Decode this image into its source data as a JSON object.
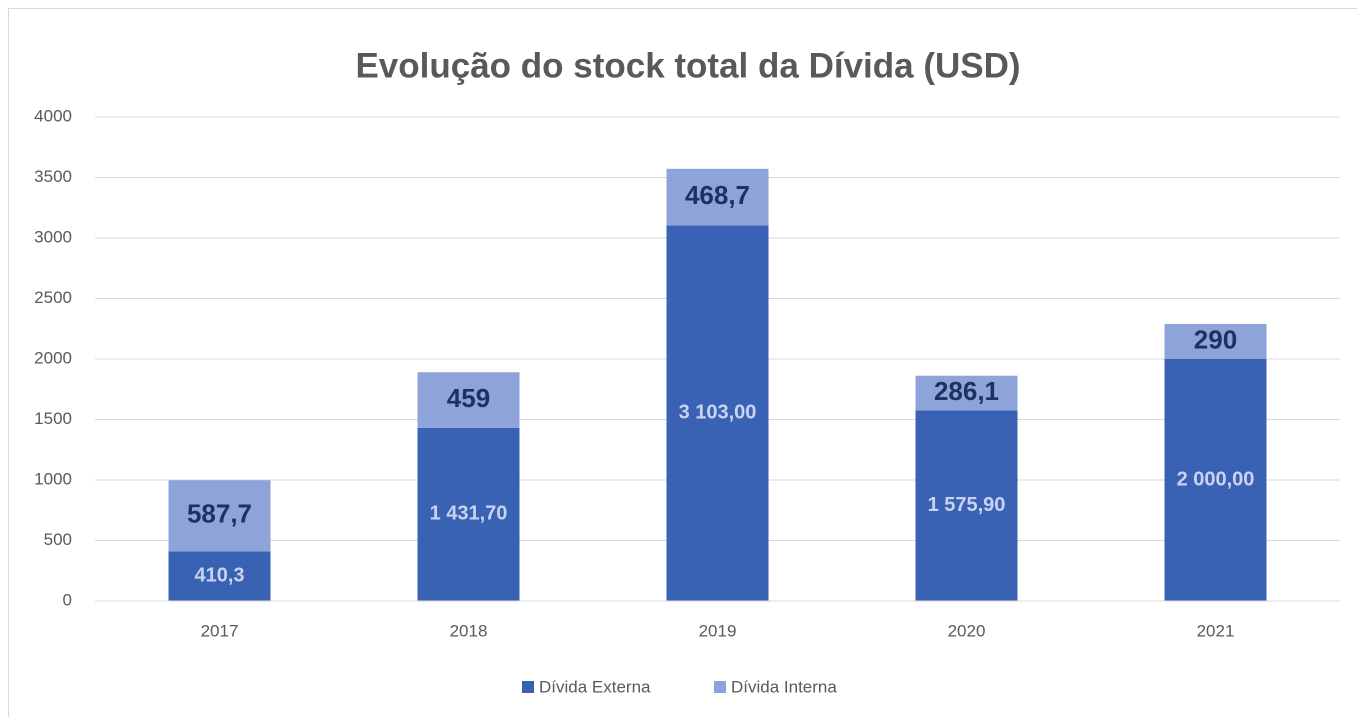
{
  "chart_data": {
    "type": "stacked-bar",
    "title": "Evolução do stock total da Dívida (USD)",
    "categories": [
      "2017",
      "2018",
      "2019",
      "2020",
      "2021"
    ],
    "series": [
      {
        "name": "Dívida Externa",
        "color": "#3a62b4",
        "values": [
          410.3,
          1431.7,
          3103,
          1575.9,
          2000
        ],
        "value_labels": [
          "410,3",
          "1 431,70",
          "3 103,00",
          "1 575,90",
          "2 000,00"
        ]
      },
      {
        "name": "Dívida Interna",
        "color": "#8ea3d9",
        "values": [
          587.7,
          459,
          468.7,
          286.1,
          290
        ],
        "value_labels": [
          "587,7",
          "459",
          "468,7",
          "286,1",
          "290"
        ]
      }
    ],
    "ylim": [
      0,
      4000
    ],
    "yticks": [
      0,
      500,
      1000,
      1500,
      2000,
      2500,
      3000,
      3500,
      4000
    ],
    "grid": true,
    "legend": "bottom"
  }
}
